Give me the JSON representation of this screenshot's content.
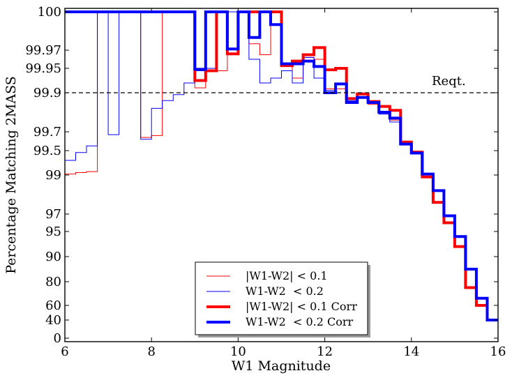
{
  "chart_data": {
    "type": "line",
    "step": true,
    "xlabel": "W1 Magnitude",
    "ylabel": "Percentage Matching 2MASS",
    "xlim": [
      6,
      16
    ],
    "xticks": [
      6,
      8,
      10,
      12,
      14,
      16
    ],
    "ytick_labels": [
      "0",
      "40",
      "60",
      "80",
      "90",
      "95",
      "97",
      "99",
      "99.5",
      "99.7",
      "99.9",
      "99.95",
      "99.97",
      "100"
    ],
    "grid": false,
    "legend_position": "lower-center",
    "reference_line": {
      "label": "Reqt.",
      "y_label": "99.9",
      "style": "dashed"
    },
    "bin_edges": [
      6.0,
      6.25,
      6.5,
      6.75,
      7.0,
      7.25,
      7.5,
      7.75,
      8.0,
      8.25,
      8.5,
      8.75,
      9.0,
      9.25,
      9.5,
      9.75,
      10.0,
      10.25,
      10.5,
      10.75,
      11.0,
      11.25,
      11.5,
      11.75,
      12.0,
      12.25,
      12.5,
      12.75,
      13.0,
      13.25,
      13.5,
      13.75,
      14.0,
      14.25,
      14.5,
      14.75,
      15.0,
      15.25,
      15.5,
      15.75,
      16.0
    ],
    "series": [
      {
        "name": "|W1-W2| < 0.1",
        "color": "#ff0000",
        "linewidth": 1,
        "values": [
          99.02,
          99.05,
          99.07,
          100,
          100,
          100,
          100,
          99.64,
          99.66,
          100,
          100,
          100,
          99.91,
          99.945,
          99.945,
          100,
          100,
          99.975,
          99.965,
          100,
          99.956,
          99.93,
          99.962,
          99.96,
          99.908,
          99.908,
          99.87,
          99.88,
          99.84,
          99.8,
          99.76,
          99.59,
          99.47,
          98.9,
          97.6,
          96.0,
          92.0,
          75.0,
          60.0,
          40.0
        ]
      },
      {
        "name": "W1-W2  < 0.2",
        "color": "#0000ff",
        "linewidth": 1,
        "values": [
          99.3,
          99.46,
          99.55,
          100,
          99.67,
          100,
          100,
          99.62,
          99.82,
          99.86,
          99.89,
          99.92,
          99.945,
          99.95,
          100,
          100,
          100,
          99.96,
          99.92,
          99.93,
          99.945,
          99.92,
          99.962,
          99.93,
          99.905,
          99.92,
          99.86,
          99.88,
          99.85,
          99.79,
          99.75,
          99.57,
          99.45,
          99.02,
          98.2,
          96.8,
          94.0,
          85.0,
          66.0,
          40.0
        ]
      },
      {
        "name": "|W1-W2| < 0.1 Corr",
        "color": "#ff0000",
        "linewidth": 4,
        "values": [
          100,
          100,
          100,
          100,
          100,
          100,
          100,
          100,
          100,
          100,
          100,
          100,
          99.925,
          99.945,
          100,
          99.966,
          100,
          100,
          100,
          100,
          99.953,
          99.958,
          99.965,
          99.972,
          99.947,
          99.95,
          99.87,
          99.894,
          99.855,
          99.83,
          99.81,
          99.59,
          99.47,
          98.9,
          97.6,
          96.0,
          92.0,
          75.0,
          60.0,
          40.0
        ]
      },
      {
        "name": "W1-W2  < 0.2 Corr",
        "color": "#0000ff",
        "linewidth": 4,
        "values": [
          100,
          100,
          100,
          100,
          100,
          100,
          100,
          100,
          100,
          100,
          100,
          100,
          99.948,
          100,
          100,
          99.971,
          100,
          99.98,
          100,
          99.99,
          99.955,
          99.955,
          99.958,
          99.952,
          99.9,
          99.918,
          99.85,
          99.876,
          99.85,
          99.8,
          99.77,
          99.57,
          99.45,
          99.02,
          98.2,
          96.8,
          94.0,
          85.0,
          66.0,
          40.0
        ]
      }
    ]
  }
}
